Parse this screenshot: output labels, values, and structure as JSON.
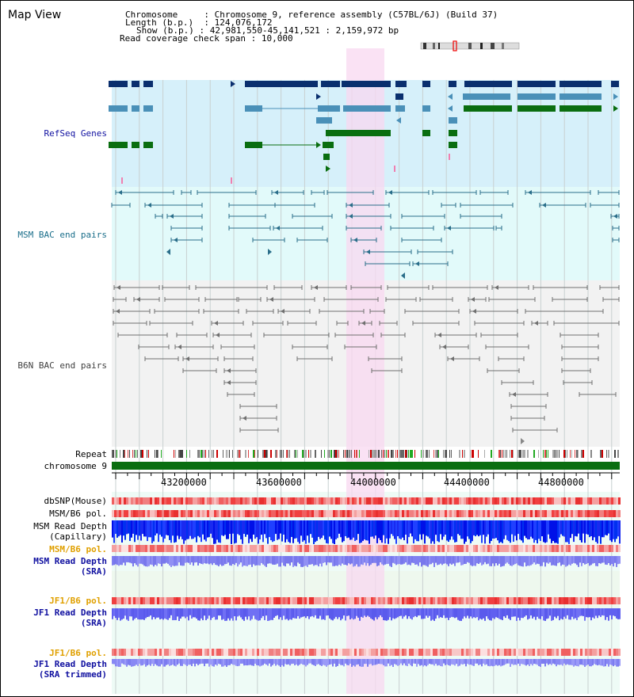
{
  "title": "Map View",
  "header": {
    "chromosome_label": "Chromosome",
    "chromosome_value": "Chromosome 9, reference assembly (C57BL/6J) (Build 37)",
    "length_label": "Length (b.p.)",
    "length_value": "124,076,172",
    "show_label": "Show (b.p.)",
    "show_value": "42,981,550-45,141,521 : 2,159,972 bp",
    "coverage_label": "Read coverage check span",
    "coverage_value": "10,000"
  },
  "tracks": {
    "refseq": "RefSeq Genes",
    "msm_bac": "MSM BAC end pairs",
    "b6n_bac": "B6N BAC end pairs",
    "repeat": "Repeat",
    "chromosome": "chromosome 9",
    "dbsnp": "dbSNP(Mouse)",
    "msm_b6_pol_1": "MSM/B6 pol.",
    "msm_read_depth_cap_1": "MSM Read Depth",
    "msm_read_depth_cap_2": "(Capillary)",
    "msm_b6_pol_2": "MSM/B6 pol.",
    "msm_read_depth_sra_1": "MSM Read Depth",
    "msm_read_depth_sra_2": "(SRA)",
    "jf1_b6_pol_1": "JF1/B6 pol.",
    "jf1_read_depth_sra_1": "JF1 Read Depth",
    "jf1_read_depth_sra_2": "(SRA)",
    "jf1_b6_pol_2": "JF1/B6 pol.",
    "jf1_read_depth_trim_1": "JF1 Read Depth",
    "jf1_read_depth_trim_2": "(SRA trimmed)"
  },
  "axis": {
    "ticks": [
      "43200000",
      "43600000",
      "44000000",
      "44400000",
      "44800000"
    ]
  },
  "colors": {
    "refseq_bg": "#d6f0fa",
    "msm_bg": "#e2fafa",
    "b6n_bg": "#f2f2f2",
    "highlight": "#f8d8f0",
    "gene_dark": "#0a2f6e",
    "gene_mid": "#4a90b8",
    "gene_green": "#0a6e10",
    "msm_line": "#2a6e8a",
    "b6n_line": "#707070",
    "chrom_bar": "#0a6e10",
    "orange_label": "#e0a000",
    "blue_label": "#1010a0"
  }
}
